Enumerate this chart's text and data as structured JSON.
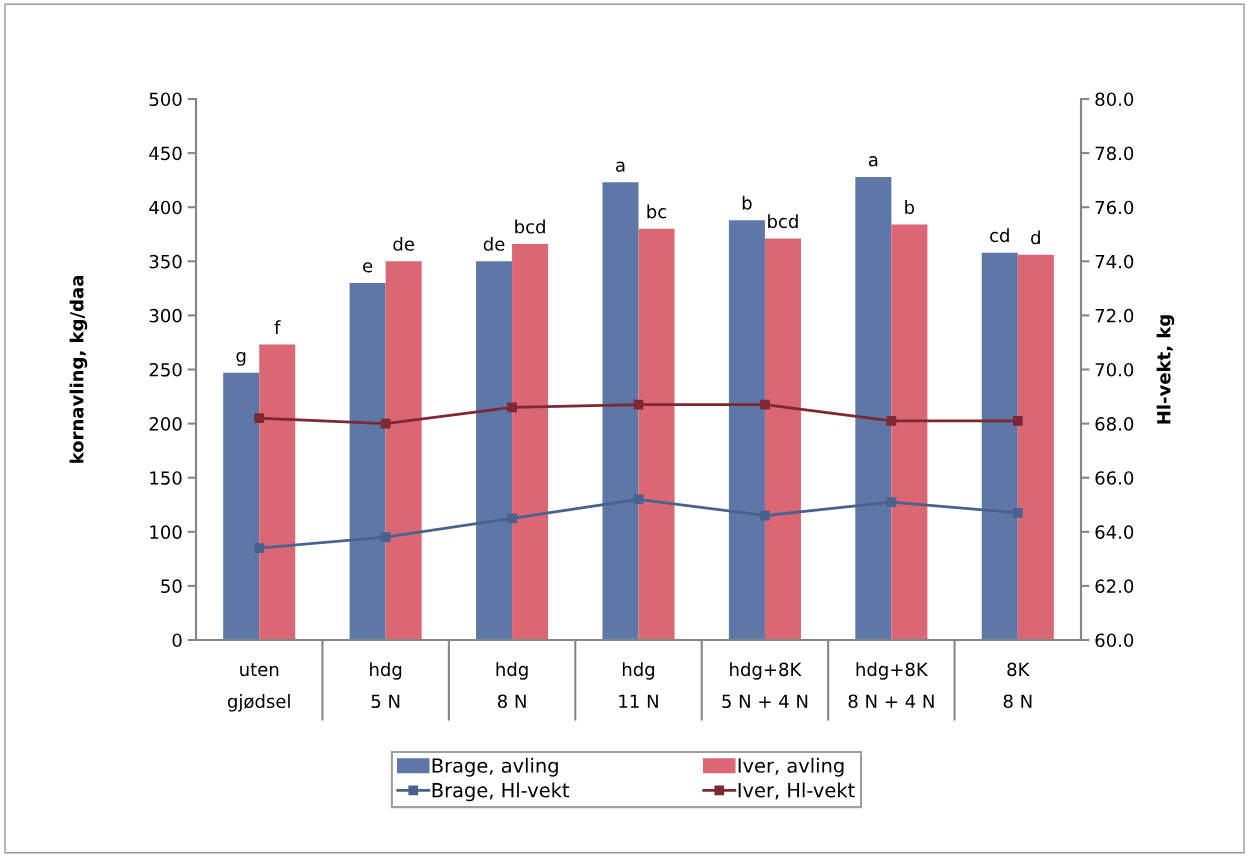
{
  "chart_data": {
    "type": "bar",
    "categories": [
      "uten\ngjødsel",
      "hdg\n5 N",
      "hdg\n8 N",
      "hdg\n11 N",
      "hdg+8K\n5 N + 4 N",
      "hdg+8K\n8 N + 4 N",
      "8K\n8 N"
    ],
    "series": [
      {
        "name": "Brage, avling",
        "color": "#5d77a7",
        "values": [
          247,
          330,
          350,
          423,
          388,
          428,
          358
        ],
        "value_labels": [
          "g",
          "e",
          "de",
          "a",
          "b",
          "a",
          "cd"
        ]
      },
      {
        "name": "Iver, avling",
        "color": "#db6674",
        "values": [
          273,
          350,
          366,
          380,
          371,
          384,
          356
        ],
        "value_labels": [
          "f",
          "de",
          "bcd",
          "bc",
          "bcd",
          "b",
          "d"
        ]
      },
      {
        "name": "Brage, Hl-vekt",
        "type": "line",
        "axis": "y2",
        "color": "#48628f",
        "values": [
          63.4,
          63.8,
          64.5,
          65.2,
          64.6,
          65.1,
          64.7
        ]
      },
      {
        "name": "Iver, Hl-vekt",
        "type": "line",
        "axis": "y2",
        "color": "#7d2833",
        "values": [
          68.2,
          68.0,
          68.6,
          68.7,
          68.7,
          68.1,
          68.1
        ]
      }
    ],
    "ylabel": "kornavling, kg/daa",
    "y2label": "Hl-vekt, kg",
    "ylim": [
      0,
      500
    ],
    "yticks": [
      0,
      50,
      100,
      150,
      200,
      250,
      300,
      350,
      400,
      450,
      500
    ],
    "y2lim": [
      60,
      80
    ],
    "y2ticks": [
      {
        "value": 60,
        "label": "60.0"
      },
      {
        "value": 62,
        "label": "62.0"
      },
      {
        "value": 64,
        "label": "64.0"
      },
      {
        "value": 66,
        "label": "66.0"
      },
      {
        "value": 68,
        "label": "68.0"
      },
      {
        "value": 70,
        "label": "70.0"
      },
      {
        "value": 72,
        "label": "72.0"
      },
      {
        "value": 74,
        "label": "74.0"
      },
      {
        "value": 76,
        "label": "76.0"
      },
      {
        "value": 78,
        "label": "78.0"
      },
      {
        "value": 80,
        "label": "80.0"
      }
    ],
    "marker": "square",
    "line_style": "solid",
    "legend": "bottom",
    "grid": false
  }
}
